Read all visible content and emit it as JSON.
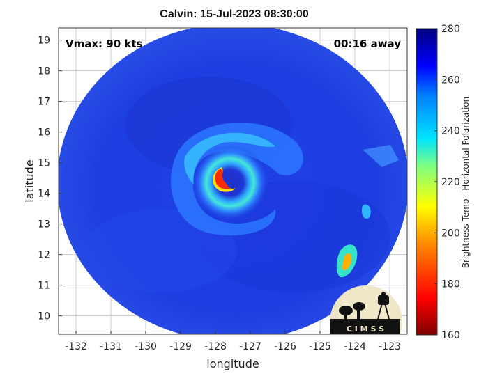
{
  "title": "Calvin: 15-Jul-2023 08:30:00",
  "vmax_label": "Vmax: 90 kts",
  "time_label": "00:16 away",
  "x_axis": {
    "label": "longitude",
    "range": [
      -132.5,
      -122.5
    ],
    "ticks": [
      "-132",
      "-131",
      "-130",
      "-129",
      "-128",
      "-127",
      "-126",
      "-125",
      "-124",
      "-123"
    ]
  },
  "y_axis": {
    "label": "latitude",
    "range": [
      9.4,
      19.4
    ],
    "ticks": [
      "10",
      "11",
      "12",
      "13",
      "14",
      "15",
      "16",
      "17",
      "18",
      "19"
    ]
  },
  "colorbar": {
    "label": "Brightness Temp - Horizontal Polarization",
    "range": [
      160,
      280
    ],
    "ticks": [
      "160",
      "180",
      "200",
      "220",
      "240",
      "260",
      "280"
    ]
  },
  "storm_center": {
    "lon": -127.4,
    "lat": 14.1
  },
  "logo_text": "C I M S S",
  "grid": true,
  "colors": {
    "background_blue": "#1f3fe0",
    "grid": "#cccccc"
  }
}
